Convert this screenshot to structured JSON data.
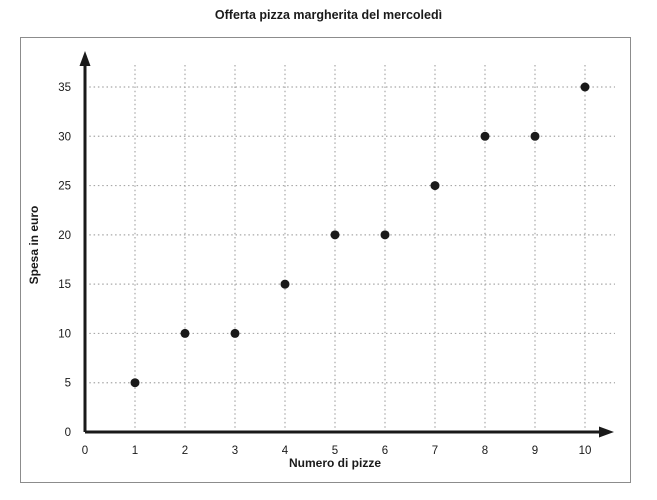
{
  "chart_data": {
    "type": "scatter",
    "title": "Offerta pizza margherita del mercoledì",
    "xlabel": "Numero di pizze",
    "ylabel": "Spesa in euro",
    "x": [
      1,
      2,
      3,
      4,
      5,
      6,
      7,
      8,
      9,
      10
    ],
    "y": [
      5,
      10,
      10,
      15,
      20,
      20,
      25,
      30,
      30,
      35
    ],
    "xlim": [
      0,
      10
    ],
    "ylim": [
      0,
      35
    ],
    "x_ticks": [
      0,
      1,
      2,
      3,
      4,
      5,
      6,
      7,
      8,
      9,
      10
    ],
    "y_ticks": [
      0,
      5,
      10,
      15,
      20,
      25,
      30,
      35
    ],
    "grid": "dotted",
    "legend": "none",
    "colors": {
      "point": "#1a1a1a",
      "grid": "#a8a8a8",
      "axis": "#1a1a1a",
      "border": "#8c8c8c",
      "text": "#1a1a1a",
      "background": "#ffffff"
    }
  }
}
